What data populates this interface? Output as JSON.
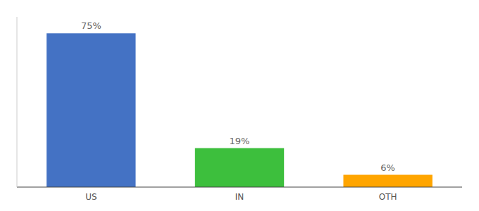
{
  "chart_data": {
    "type": "bar",
    "categories": [
      "US",
      "IN",
      "OTH"
    ],
    "values": [
      75,
      19,
      6
    ],
    "value_labels": [
      "75%",
      "19%",
      "6%"
    ],
    "colors": [
      "#4472C4",
      "#3DBF3D",
      "#FFA500"
    ],
    "ylim": [
      0,
      83
    ],
    "data_labels": true,
    "tick_labels": "x",
    "grid": false
  }
}
